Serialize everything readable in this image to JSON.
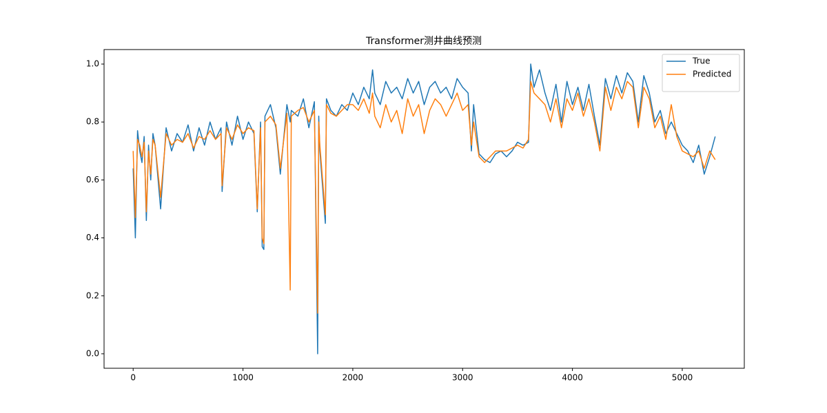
{
  "chart_data": {
    "type": "line",
    "title": "Transformer测井曲线预测",
    "x": [
      0,
      20,
      40,
      60,
      80,
      100,
      120,
      140,
      160,
      180,
      200,
      250,
      300,
      350,
      400,
      450,
      500,
      550,
      600,
      650,
      700,
      750,
      800,
      810,
      850,
      900,
      950,
      1000,
      1050,
      1100,
      1130,
      1160,
      1175,
      1190,
      1200,
      1250,
      1300,
      1340,
      1400,
      1430,
      1440,
      1500,
      1550,
      1600,
      1650,
      1680,
      1690,
      1700,
      1750,
      1760,
      1800,
      1850,
      1900,
      1950,
      2000,
      2050,
      2100,
      2150,
      2180,
      2200,
      2250,
      2300,
      2350,
      2400,
      2450,
      2500,
      2550,
      2600,
      2650,
      2700,
      2750,
      2800,
      2850,
      2900,
      2950,
      3000,
      3050,
      3080,
      3100,
      3150,
      3200,
      3250,
      3300,
      3350,
      3400,
      3450,
      3500,
      3550,
      3600,
      3620,
      3650,
      3700,
      3750,
      3800,
      3850,
      3900,
      3950,
      4000,
      4050,
      4100,
      4150,
      4200,
      4250,
      4300,
      4350,
      4400,
      4450,
      4500,
      4550,
      4600,
      4650,
      4700,
      4750,
      4800,
      4850,
      4900,
      4950,
      5000,
      5050,
      5100,
      5150,
      5200,
      5250,
      5300
    ],
    "series": [
      {
        "name": "True",
        "color": "#1f77b4",
        "values": [
          0.64,
          0.4,
          0.77,
          0.7,
          0.66,
          0.75,
          0.46,
          0.72,
          0.6,
          0.76,
          0.72,
          0.5,
          0.78,
          0.7,
          0.76,
          0.73,
          0.79,
          0.7,
          0.78,
          0.72,
          0.8,
          0.74,
          0.78,
          0.56,
          0.8,
          0.72,
          0.82,
          0.74,
          0.8,
          0.76,
          0.49,
          0.8,
          0.37,
          0.36,
          0.82,
          0.86,
          0.78,
          0.62,
          0.86,
          0.8,
          0.84,
          0.82,
          0.88,
          0.78,
          0.87,
          0.0,
          0.82,
          0.7,
          0.45,
          0.88,
          0.84,
          0.82,
          0.86,
          0.84,
          0.9,
          0.86,
          0.92,
          0.88,
          0.98,
          0.9,
          0.86,
          0.94,
          0.9,
          0.92,
          0.88,
          0.95,
          0.9,
          0.94,
          0.86,
          0.92,
          0.94,
          0.9,
          0.92,
          0.88,
          0.95,
          0.92,
          0.9,
          0.7,
          0.86,
          0.69,
          0.67,
          0.66,
          0.69,
          0.7,
          0.68,
          0.7,
          0.73,
          0.72,
          0.73,
          1.0,
          0.92,
          0.98,
          0.9,
          0.84,
          0.93,
          0.8,
          0.94,
          0.86,
          0.92,
          0.84,
          0.93,
          0.82,
          0.72,
          0.95,
          0.88,
          0.96,
          0.9,
          0.97,
          0.94,
          0.8,
          0.96,
          0.9,
          0.8,
          0.84,
          0.76,
          0.8,
          0.76,
          0.72,
          0.7,
          0.66,
          0.72,
          0.62,
          0.68,
          0.75
        ]
      },
      {
        "name": "Predicted",
        "color": "#ff7f0e",
        "values": [
          0.7,
          0.47,
          0.74,
          0.72,
          0.68,
          0.73,
          0.49,
          0.7,
          0.62,
          0.74,
          0.72,
          0.54,
          0.76,
          0.72,
          0.74,
          0.73,
          0.76,
          0.71,
          0.75,
          0.74,
          0.77,
          0.74,
          0.76,
          0.58,
          0.78,
          0.74,
          0.79,
          0.76,
          0.78,
          0.77,
          0.5,
          0.78,
          0.4,
          0.38,
          0.8,
          0.82,
          0.79,
          0.64,
          0.83,
          0.22,
          0.82,
          0.84,
          0.85,
          0.8,
          0.84,
          0.14,
          0.8,
          0.72,
          0.48,
          0.86,
          0.83,
          0.82,
          0.84,
          0.86,
          0.86,
          0.84,
          0.88,
          0.83,
          0.9,
          0.82,
          0.78,
          0.86,
          0.8,
          0.84,
          0.76,
          0.88,
          0.82,
          0.86,
          0.76,
          0.84,
          0.88,
          0.86,
          0.82,
          0.86,
          0.9,
          0.84,
          0.86,
          0.72,
          0.8,
          0.68,
          0.66,
          0.68,
          0.7,
          0.7,
          0.7,
          0.71,
          0.72,
          0.71,
          0.74,
          0.94,
          0.9,
          0.88,
          0.86,
          0.8,
          0.88,
          0.78,
          0.88,
          0.84,
          0.9,
          0.82,
          0.88,
          0.8,
          0.7,
          0.92,
          0.84,
          0.92,
          0.88,
          0.94,
          0.92,
          0.78,
          0.92,
          0.88,
          0.78,
          0.82,
          0.74,
          0.86,
          0.75,
          0.7,
          0.69,
          0.68,
          0.7,
          0.64,
          0.7,
          0.67
        ]
      }
    ],
    "xlim": [
      -265,
      5565
    ],
    "xticks": [
      0,
      1000,
      2000,
      3000,
      4000,
      5000
    ],
    "ylim": [
      -0.05,
      1.05
    ],
    "yticks": [
      {
        "value": 0,
        "label": "0.0"
      },
      0.2,
      0.4,
      0.6,
      0.8,
      {
        "value": 1,
        "label": "1.0"
      }
    ],
    "legend": "upper right"
  }
}
